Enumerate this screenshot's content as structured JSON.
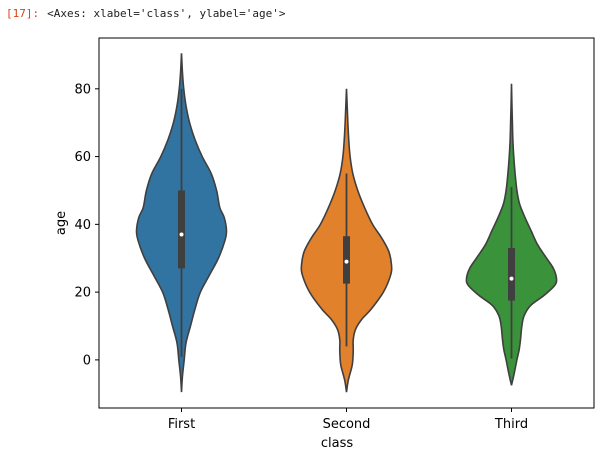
{
  "cell": {
    "prompt": "[17]:",
    "repr_text": "<Axes: xlabel='class', ylabel='age'>"
  },
  "chart_data": {
    "type": "violin",
    "xlabel": "class",
    "ylabel": "age",
    "categories": [
      "First",
      "Second",
      "Third"
    ],
    "ylim": [
      -14.2,
      95
    ],
    "yticks": [
      0,
      20,
      40,
      60,
      80
    ],
    "grid": false,
    "colors": {
      "First": "#3274a1",
      "Second": "#e1812c",
      "Third": "#3a923a",
      "outline": "#3f3f3f",
      "box": "#3f3f3f",
      "median": "#ffffff"
    },
    "violins": [
      {
        "category": "First",
        "min": -9.5,
        "max": 90.5,
        "q1": 27,
        "median": 37,
        "q3": 50,
        "whisker_low": 0.9,
        "whisker_high": 80,
        "density": [
          [
            -9.5,
            0.0
          ],
          [
            -5,
            0.02
          ],
          [
            0,
            0.06
          ],
          [
            5,
            0.1
          ],
          [
            10,
            0.2
          ],
          [
            15,
            0.3
          ],
          [
            20,
            0.42
          ],
          [
            25,
            0.62
          ],
          [
            30,
            0.82
          ],
          [
            35,
            0.96
          ],
          [
            38,
            1.0
          ],
          [
            42,
            0.95
          ],
          [
            45,
            0.85
          ],
          [
            50,
            0.78
          ],
          [
            55,
            0.66
          ],
          [
            60,
            0.46
          ],
          [
            65,
            0.3
          ],
          [
            70,
            0.18
          ],
          [
            75,
            0.1
          ],
          [
            80,
            0.05
          ],
          [
            85,
            0.02
          ],
          [
            90.5,
            0.0
          ]
        ]
      },
      {
        "category": "Second",
        "min": -9.5,
        "max": 80,
        "q1": 22.5,
        "median": 29,
        "q3": 36.5,
        "whisker_low": 4,
        "whisker_high": 55,
        "density": [
          [
            -9.5,
            0.0
          ],
          [
            -6,
            0.04
          ],
          [
            -2,
            0.12
          ],
          [
            0,
            0.14
          ],
          [
            3,
            0.15
          ],
          [
            6,
            0.15
          ],
          [
            9,
            0.2
          ],
          [
            12,
            0.34
          ],
          [
            15,
            0.55
          ],
          [
            20,
            0.82
          ],
          [
            25,
            0.98
          ],
          [
            28,
            1.0
          ],
          [
            32,
            0.94
          ],
          [
            36,
            0.78
          ],
          [
            40,
            0.58
          ],
          [
            45,
            0.4
          ],
          [
            50,
            0.25
          ],
          [
            55,
            0.14
          ],
          [
            60,
            0.08
          ],
          [
            65,
            0.05
          ],
          [
            70,
            0.03
          ],
          [
            75,
            0.015
          ],
          [
            80,
            0.0
          ]
        ]
      },
      {
        "category": "Third",
        "min": -7.5,
        "max": 81.5,
        "q1": 17.5,
        "median": 24,
        "q3": 33,
        "whisker_low": 0.4,
        "whisker_high": 51,
        "density": [
          [
            -7.5,
            0.0
          ],
          [
            -4,
            0.06
          ],
          [
            0,
            0.12
          ],
          [
            3,
            0.17
          ],
          [
            6,
            0.2
          ],
          [
            10,
            0.23
          ],
          [
            13,
            0.28
          ],
          [
            16,
            0.42
          ],
          [
            19,
            0.72
          ],
          [
            22,
            0.96
          ],
          [
            24,
            1.0
          ],
          [
            27,
            0.93
          ],
          [
            30,
            0.78
          ],
          [
            34,
            0.58
          ],
          [
            38,
            0.44
          ],
          [
            42,
            0.3
          ],
          [
            46,
            0.18
          ],
          [
            50,
            0.12
          ],
          [
            55,
            0.08
          ],
          [
            60,
            0.05
          ],
          [
            65,
            0.03
          ],
          [
            70,
            0.02
          ],
          [
            75,
            0.01
          ],
          [
            81.5,
            0.0
          ]
        ]
      }
    ]
  }
}
